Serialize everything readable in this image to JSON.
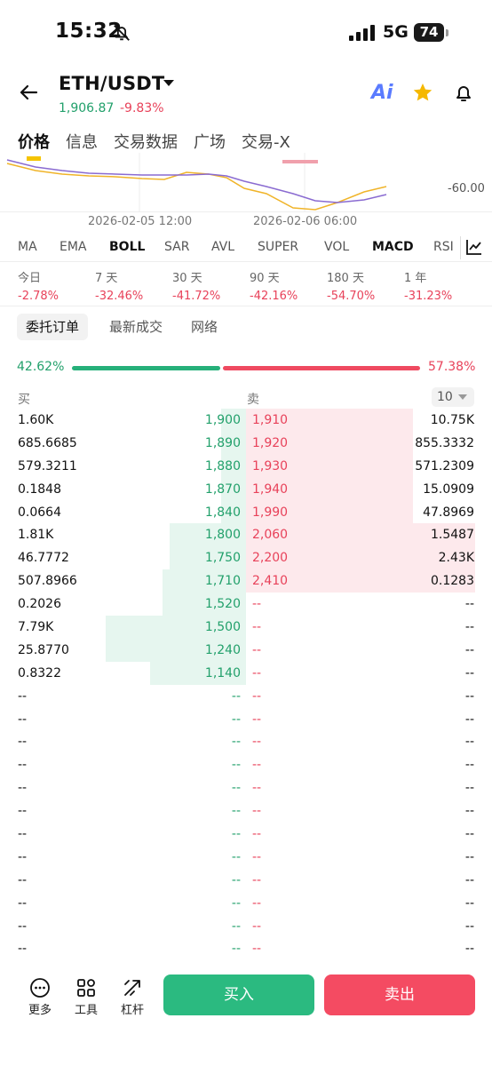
{
  "status_bar": {
    "time": "15:32",
    "network": "5G",
    "battery": "74"
  },
  "header": {
    "pair": "ETH/USDT",
    "price": "1,906.87",
    "change": "-9.83%",
    "ai_label": "Ai"
  },
  "tabs": [
    "价格",
    "信息",
    "交易数据",
    "广场",
    "交易-X"
  ],
  "chart": {
    "axis_label": "-60.00",
    "date_labels": [
      "2026-02-05 12:00",
      "2026-02-06 06:00"
    ]
  },
  "indicators": [
    "MA",
    "EMA",
    "BOLL",
    "SAR",
    "AVL",
    "SUPER",
    "VOL",
    "MACD",
    "RSI"
  ],
  "periods": [
    {
      "label": "今日",
      "value": "-2.78%"
    },
    {
      "label": "7 天",
      "value": "-32.46%"
    },
    {
      "label": "30 天",
      "value": "-41.72%"
    },
    {
      "label": "90 天",
      "value": "-42.16%"
    },
    {
      "label": "180 天",
      "value": "-54.70%"
    },
    {
      "label": "1 年",
      "value": "-31.23%"
    }
  ],
  "sub_tabs": [
    "委托订单",
    "最新成交",
    "网络"
  ],
  "ratio": {
    "buy_label": "42.62%",
    "sell_label": "57.38%",
    "buy_fraction": 0.4262
  },
  "book_header": {
    "buy": "买",
    "sell": "卖",
    "depth": "10"
  },
  "book_rows": [
    {
      "bid_amt": "1.60K",
      "bid_price": "1,900",
      "ask_price": "1,910",
      "ask_amt": "10.75K",
      "bid_depth": 0.1,
      "ask_depth": 0.68
    },
    {
      "bid_amt": "685.6685",
      "bid_price": "1,890",
      "ask_price": "1,920",
      "ask_amt": "855.3332",
      "bid_depth": 0.1,
      "ask_depth": 0.68
    },
    {
      "bid_amt": "579.3211",
      "bid_price": "1,880",
      "ask_price": "1,930",
      "ask_amt": "571.2309",
      "bid_depth": 0.1,
      "ask_depth": 0.68
    },
    {
      "bid_amt": "0.1848",
      "bid_price": "1,870",
      "ask_price": "1,940",
      "ask_amt": "15.0909",
      "bid_depth": 0.1,
      "ask_depth": 0.68
    },
    {
      "bid_amt": "0.0664",
      "bid_price": "1,840",
      "ask_price": "1,990",
      "ask_amt": "47.8969",
      "bid_depth": 0.1,
      "ask_depth": 0.68
    },
    {
      "bid_amt": "1.81K",
      "bid_price": "1,800",
      "ask_price": "2,060",
      "ask_amt": "1.5487",
      "bid_depth": 0.31,
      "ask_depth": 0.93
    },
    {
      "bid_amt": "46.7772",
      "bid_price": "1,750",
      "ask_price": "2,200",
      "ask_amt": "2.43K",
      "bid_depth": 0.31,
      "ask_depth": 0.93
    },
    {
      "bid_amt": "507.8966",
      "bid_price": "1,710",
      "ask_price": "2,410",
      "ask_amt": "0.1283",
      "bid_depth": 0.34,
      "ask_depth": 0.93
    },
    {
      "bid_amt": "0.2026",
      "bid_price": "1,520",
      "ask_price": "--",
      "ask_amt": "--",
      "bid_depth": 0.34,
      "ask_depth": 0
    },
    {
      "bid_amt": "7.79K",
      "bid_price": "1,500",
      "ask_price": "--",
      "ask_amt": "--",
      "bid_depth": 0.57,
      "ask_depth": 0
    },
    {
      "bid_amt": "25.8770",
      "bid_price": "1,240",
      "ask_price": "--",
      "ask_amt": "--",
      "bid_depth": 0.57,
      "ask_depth": 0
    },
    {
      "bid_amt": "0.8322",
      "bid_price": "1,140",
      "ask_price": "--",
      "ask_amt": "--",
      "bid_depth": 0.39,
      "ask_depth": 0
    },
    {
      "bid_amt": "--",
      "bid_price": "--",
      "ask_price": "--",
      "ask_amt": "--",
      "bid_depth": 0,
      "ask_depth": 0
    },
    {
      "bid_amt": "--",
      "bid_price": "--",
      "ask_price": "--",
      "ask_amt": "--",
      "bid_depth": 0,
      "ask_depth": 0
    },
    {
      "bid_amt": "--",
      "bid_price": "--",
      "ask_price": "--",
      "ask_amt": "--",
      "bid_depth": 0,
      "ask_depth": 0
    },
    {
      "bid_amt": "--",
      "bid_price": "--",
      "ask_price": "--",
      "ask_amt": "--",
      "bid_depth": 0,
      "ask_depth": 0
    },
    {
      "bid_amt": "--",
      "bid_price": "--",
      "ask_price": "--",
      "ask_amt": "--",
      "bid_depth": 0,
      "ask_depth": 0
    },
    {
      "bid_amt": "--",
      "bid_price": "--",
      "ask_price": "--",
      "ask_amt": "--",
      "bid_depth": 0,
      "ask_depth": 0
    },
    {
      "bid_amt": "--",
      "bid_price": "--",
      "ask_price": "--",
      "ask_amt": "--",
      "bid_depth": 0,
      "ask_depth": 0
    },
    {
      "bid_amt": "--",
      "bid_price": "--",
      "ask_price": "--",
      "ask_amt": "--",
      "bid_depth": 0,
      "ask_depth": 0
    },
    {
      "bid_amt": "--",
      "bid_price": "--",
      "ask_price": "--",
      "ask_amt": "--",
      "bid_depth": 0,
      "ask_depth": 0
    },
    {
      "bid_amt": "--",
      "bid_price": "--",
      "ask_price": "--",
      "ask_amt": "--",
      "bid_depth": 0,
      "ask_depth": 0
    },
    {
      "bid_amt": "--",
      "bid_price": "--",
      "ask_price": "--",
      "ask_amt": "--",
      "bid_depth": 0,
      "ask_depth": 0
    },
    {
      "bid_amt": "--",
      "bid_price": "--",
      "ask_price": "--",
      "ask_amt": "--",
      "bid_depth": 0,
      "ask_depth": 0
    }
  ],
  "bottom_bar": {
    "more": "更多",
    "tools": "工具",
    "leverage": "杠杆",
    "buy": "买入",
    "sell": "卖出"
  },
  "colors": {
    "up": "#22a06b",
    "down": "#e8425a",
    "buy_button": "#2bba80",
    "sell_button": "#f44b62"
  }
}
